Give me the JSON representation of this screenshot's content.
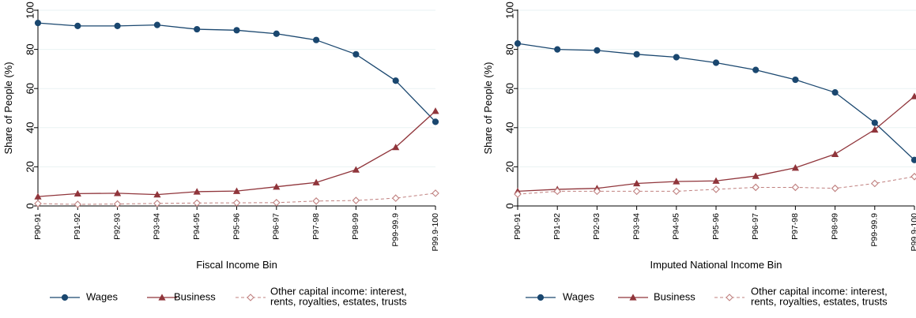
{
  "colors": {
    "wages": "#1a476f",
    "business": "#90353b",
    "other": "#c0807f",
    "grid": "#eaf2f3",
    "axis": "#000000"
  },
  "chart_data": [
    {
      "type": "line",
      "xlabel": "Fiscal Income Bin",
      "ylabel": "Share of People (%)",
      "ylim": [
        0,
        100
      ],
      "yticks": [
        0,
        20,
        40,
        60,
        80,
        100
      ],
      "grid": true,
      "legend_position": "bottom",
      "categories": [
        "P90-91",
        "P91-92",
        "P92-93",
        "P93-94",
        "P94-95",
        "P95-96",
        "P96-97",
        "P97-98",
        "P98-99",
        "P99-99.9",
        "P99.9-100"
      ],
      "series": [
        {
          "key": "wages",
          "name": "Wages",
          "marker": "circle",
          "dash": false,
          "values": [
            93.5,
            92.0,
            92.0,
            92.5,
            90.3,
            89.8,
            88.0,
            84.8,
            77.5,
            64.0,
            43.0
          ]
        },
        {
          "key": "business",
          "name": "Business",
          "marker": "triangle",
          "dash": false,
          "values": [
            4.8,
            6.3,
            6.5,
            5.8,
            7.3,
            7.6,
            9.8,
            12.0,
            18.5,
            30.0,
            48.5
          ]
        },
        {
          "key": "other",
          "name": [
            "Other capital income: interest,",
            "rents, royalties, estates, trusts"
          ],
          "marker": "diamond",
          "dash": true,
          "values": [
            1.2,
            0.8,
            1.0,
            1.3,
            1.5,
            1.6,
            1.7,
            2.5,
            2.8,
            4.0,
            6.5
          ]
        }
      ]
    },
    {
      "type": "line",
      "xlabel": "Imputed National Income Bin",
      "ylabel": "Share of People (%)",
      "ylim": [
        0,
        100
      ],
      "yticks": [
        0,
        20,
        40,
        60,
        80,
        100
      ],
      "grid": true,
      "legend_position": "bottom",
      "categories": [
        "P90-91",
        "P91-92",
        "P92-93",
        "P93-94",
        "P94-95",
        "P95-96",
        "P96-97",
        "P97-98",
        "P98-99",
        "P99-99.9",
        "P99.9-100"
      ],
      "series": [
        {
          "key": "wages",
          "name": "Wages",
          "marker": "circle",
          "dash": false,
          "values": [
            83.0,
            80.0,
            79.5,
            77.5,
            76.0,
            73.2,
            69.5,
            64.5,
            58.0,
            42.5,
            23.5
          ]
        },
        {
          "key": "business",
          "name": "Business",
          "marker": "triangle",
          "dash": false,
          "values": [
            7.5,
            8.5,
            9.0,
            11.5,
            12.5,
            12.8,
            15.3,
            19.5,
            26.5,
            39.0,
            56.0
          ]
        },
        {
          "key": "other",
          "name": [
            "Other capital income: interest,",
            "rents, royalties, estates, trusts"
          ],
          "marker": "diamond",
          "dash": true,
          "values": [
            6.0,
            7.5,
            7.5,
            7.5,
            7.5,
            8.5,
            9.5,
            9.5,
            9.0,
            11.5,
            15.0
          ]
        }
      ]
    }
  ]
}
